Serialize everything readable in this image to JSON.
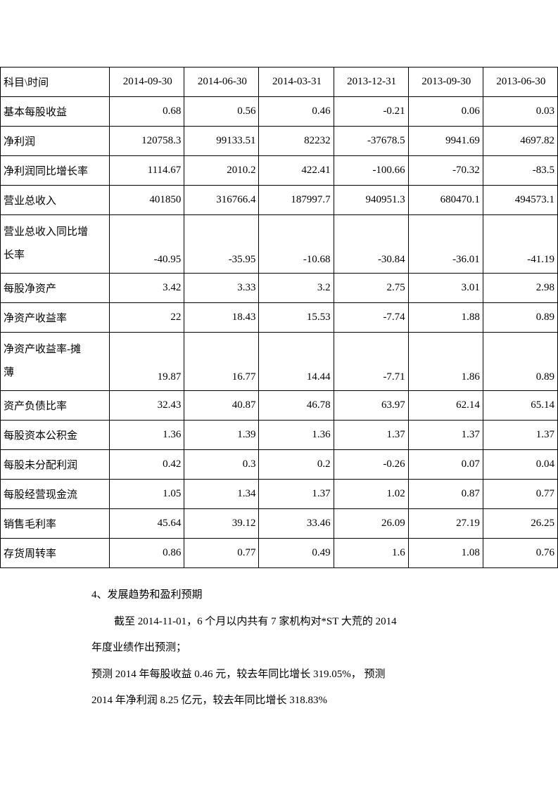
{
  "table": {
    "header_label": "科目\\时间",
    "columns": [
      "2014-09-30",
      "2014-06-30",
      "2014-03-31",
      "2013-12-31",
      "2013-09-30",
      "2013-06-30"
    ],
    "rows": [
      {
        "label": "基本每股收益",
        "values": [
          "0.68",
          "0.56",
          "0.46",
          "-0.21",
          "0.06",
          "0.03"
        ]
      },
      {
        "label": "净利润",
        "values": [
          "120758.3",
          "99133.51",
          "82232",
          "-37678.5",
          "9941.69",
          "4697.82"
        ]
      },
      {
        "label": "净利润同比增长率",
        "values": [
          "1114.67",
          "2010.2",
          "422.41",
          "-100.66",
          "-70.32",
          "-83.5"
        ]
      },
      {
        "label": "营业总收入",
        "values": [
          "401850",
          "316766.4",
          "187997.7",
          "940951.3",
          "680470.1",
          "494573.1"
        ]
      },
      {
        "label": "营业总收入同比增长率",
        "multiline": true,
        "values": [
          "-40.95",
          "-35.95",
          "-10.68",
          "-30.84",
          "-36.01",
          "-41.19"
        ]
      },
      {
        "label": "每股净资产",
        "values": [
          "3.42",
          "3.33",
          "3.2",
          "2.75",
          "3.01",
          "2.98"
        ]
      },
      {
        "label": "净资产收益率",
        "values": [
          "22",
          "18.43",
          "15.53",
          "-7.74",
          "1.88",
          "0.89"
        ]
      },
      {
        "label": "净资产收益率-摊薄",
        "multiline": true,
        "values": [
          "19.87",
          "16.77",
          "14.44",
          "-7.71",
          "1.86",
          "0.89"
        ]
      },
      {
        "label": "资产负债比率",
        "values": [
          "32.43",
          "40.87",
          "46.78",
          "63.97",
          "62.14",
          "65.14"
        ]
      },
      {
        "label": "每股资本公积金",
        "values": [
          "1.36",
          "1.39",
          "1.36",
          "1.37",
          "1.37",
          "1.37"
        ]
      },
      {
        "label": "每股未分配利润",
        "values": [
          "0.42",
          "0.3",
          "0.2",
          "-0.26",
          "0.07",
          "0.04"
        ]
      },
      {
        "label": "每股经营现金流",
        "values": [
          "1.05",
          "1.34",
          "1.37",
          "1.02",
          "0.87",
          "0.77"
        ]
      },
      {
        "label": "销售毛利率",
        "values": [
          "45.64",
          "39.12",
          "33.46",
          "26.09",
          "27.19",
          "26.25"
        ]
      },
      {
        "label": "存货周转率",
        "values": [
          "0.86",
          "0.77",
          "0.49",
          "1.6",
          "1.08",
          "0.76"
        ]
      }
    ]
  },
  "content": {
    "section_title": "4、发展趋势和盈利预期",
    "para1_line1": "截至 2014-11-01，6 个月以内共有 7 家机构对*ST 大荒的 2014",
    "para1_line2": "年度业绩作出预测；",
    "para2_line1": "预测 2014 年每股收益 0.46 元，较去年同比增长 319.05%， 预测",
    "para2_line2": "2014 年净利润 8.25 亿元，较去年同比增长 318.83%"
  }
}
